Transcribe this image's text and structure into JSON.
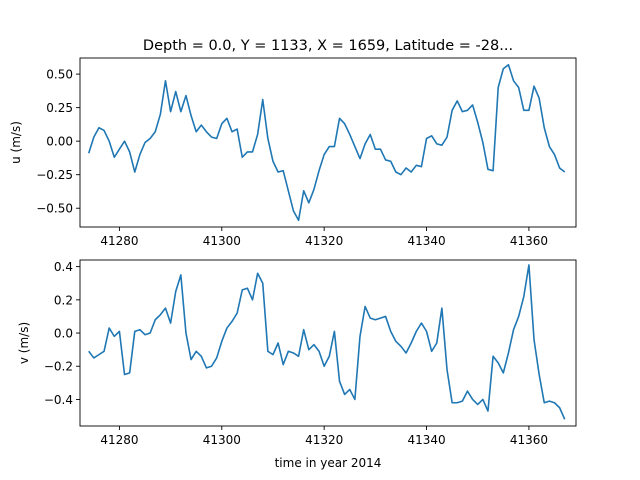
{
  "figure": {
    "title": "Depth = 0.0, Y = 1133, X = 1659, Latitude = -28...",
    "line_color": "#1f77b4"
  },
  "chart_data": [
    {
      "type": "line",
      "title": "Depth = 0.0, Y = 1133, X = 1659, Latitude = -28...",
      "xlabel": "",
      "ylabel": "u (m/s)",
      "xlim": [
        41272.3,
        41369.2
      ],
      "ylim": [
        -0.64,
        0.62
      ],
      "xticks": [
        41280,
        41300,
        41320,
        41340,
        41360
      ],
      "xtick_labels": [
        "41280",
        "41300",
        "41320",
        "41340",
        "41360"
      ],
      "yticks": [
        -0.5,
        -0.25,
        0.0,
        0.25,
        0.5
      ],
      "ytick_labels": [
        "−0.50",
        "−0.25",
        "0.00",
        "0.25",
        "0.50"
      ],
      "grid": false,
      "series": [
        {
          "x": [
            41274,
            41275,
            41276,
            41277,
            41278,
            41279,
            41280,
            41281,
            41282,
            41283,
            41284,
            41285,
            41286,
            41287,
            41288,
            41289,
            41290,
            41291,
            41292,
            41293,
            41294,
            41295,
            41296,
            41297,
            41298,
            41299,
            41300,
            41301,
            41302,
            41303,
            41304,
            41305,
            41306,
            41307,
            41308,
            41309,
            41310,
            41311,
            41312,
            41313,
            41314,
            41315,
            41316,
            41317,
            41318,
            41319,
            41320,
            41321,
            41322,
            41323,
            41324,
            41325,
            41326,
            41327,
            41328,
            41329,
            41330,
            41331,
            41332,
            41333,
            41334,
            41335,
            41336,
            41337,
            41338,
            41339,
            41340,
            41341,
            41342,
            41343,
            41344,
            41345,
            41346,
            41347,
            41348,
            41349,
            41350,
            41351,
            41352,
            41353,
            41354,
            41355,
            41356,
            41357,
            41358,
            41359,
            41360,
            41361,
            41362,
            41363,
            41364,
            41365,
            41366,
            41367
          ],
          "values": [
            -0.09,
            0.03,
            0.1,
            0.08,
            0.0,
            -0.12,
            -0.06,
            0.0,
            -0.08,
            -0.23,
            -0.1,
            -0.01,
            0.02,
            0.07,
            0.2,
            0.45,
            0.22,
            0.37,
            0.22,
            0.34,
            0.19,
            0.07,
            0.12,
            0.07,
            0.03,
            0.02,
            0.13,
            0.17,
            0.07,
            0.09,
            -0.12,
            -0.08,
            -0.08,
            0.05,
            0.31,
            0.02,
            -0.15,
            -0.23,
            -0.22,
            -0.37,
            -0.52,
            -0.59,
            -0.37,
            -0.46,
            -0.36,
            -0.22,
            -0.1,
            -0.04,
            -0.04,
            0.17,
            0.13,
            0.05,
            -0.04,
            -0.13,
            -0.02,
            0.05,
            -0.06,
            -0.06,
            -0.14,
            -0.15,
            -0.23,
            -0.25,
            -0.2,
            -0.23,
            -0.18,
            -0.19,
            0.02,
            0.04,
            -0.02,
            -0.03,
            0.03,
            0.23,
            0.3,
            0.22,
            0.23,
            0.27,
            0.14,
            -0.01,
            -0.21,
            -0.22,
            0.4,
            0.54,
            0.57,
            0.45,
            0.4,
            0.23,
            0.23,
            0.41,
            0.32,
            0.1,
            -0.04,
            -0.1,
            -0.2,
            -0.23
          ]
        }
      ]
    },
    {
      "type": "line",
      "title": "",
      "xlabel": "time in year 2014",
      "ylabel": "v (m/s)",
      "xlim": [
        41272.3,
        41369.2
      ],
      "ylim": [
        -0.56,
        0.44
      ],
      "xticks": [
        41280,
        41300,
        41320,
        41340,
        41360
      ],
      "xtick_labels": [
        "41280",
        "41300",
        "41320",
        "41340",
        "41360"
      ],
      "yticks": [
        -0.4,
        -0.2,
        0.0,
        0.2,
        0.4
      ],
      "ytick_labels": [
        "−0.4",
        "−0.2",
        "0.0",
        "0.2",
        "0.4"
      ],
      "grid": false,
      "series": [
        {
          "x": [
            41274,
            41275,
            41276,
            41277,
            41278,
            41279,
            41280,
            41281,
            41282,
            41283,
            41284,
            41285,
            41286,
            41287,
            41288,
            41289,
            41290,
            41291,
            41292,
            41293,
            41294,
            41295,
            41296,
            41297,
            41298,
            41299,
            41300,
            41301,
            41302,
            41303,
            41304,
            41305,
            41306,
            41307,
            41308,
            41309,
            41310,
            41311,
            41312,
            41313,
            41314,
            41315,
            41316,
            41317,
            41318,
            41319,
            41320,
            41321,
            41322,
            41323,
            41324,
            41325,
            41326,
            41327,
            41328,
            41329,
            41330,
            41331,
            41332,
            41333,
            41334,
            41335,
            41336,
            41337,
            41338,
            41339,
            41340,
            41341,
            41342,
            41343,
            41344,
            41345,
            41346,
            41347,
            41348,
            41349,
            41350,
            41351,
            41352,
            41353,
            41354,
            41355,
            41356,
            41357,
            41358,
            41359,
            41360,
            41361,
            41362,
            41363,
            41364,
            41365,
            41366,
            41367
          ],
          "values": [
            -0.11,
            -0.15,
            -0.13,
            -0.11,
            0.03,
            -0.02,
            0.01,
            -0.25,
            -0.24,
            0.01,
            0.02,
            -0.01,
            0.0,
            0.08,
            0.11,
            0.15,
            0.06,
            0.25,
            0.35,
            0.0,
            -0.16,
            -0.11,
            -0.14,
            -0.21,
            -0.2,
            -0.15,
            -0.05,
            0.03,
            0.07,
            0.12,
            0.26,
            0.27,
            0.2,
            0.36,
            0.3,
            -0.11,
            -0.13,
            -0.06,
            -0.19,
            -0.11,
            -0.12,
            -0.14,
            0.02,
            -0.1,
            -0.07,
            -0.11,
            -0.2,
            -0.14,
            0.01,
            -0.29,
            -0.37,
            -0.34,
            -0.4,
            -0.02,
            0.16,
            0.09,
            0.08,
            0.09,
            0.1,
            0.01,
            -0.05,
            -0.08,
            -0.12,
            -0.06,
            0.01,
            0.06,
            0.01,
            -0.11,
            -0.06,
            0.15,
            -0.22,
            -0.42,
            -0.42,
            -0.41,
            -0.35,
            -0.4,
            -0.43,
            -0.4,
            -0.47,
            -0.14,
            -0.18,
            -0.24,
            -0.12,
            0.02,
            0.1,
            0.22,
            0.41,
            -0.04,
            -0.25,
            -0.42,
            -0.41,
            -0.42,
            -0.45,
            -0.52
          ]
        }
      ]
    }
  ]
}
